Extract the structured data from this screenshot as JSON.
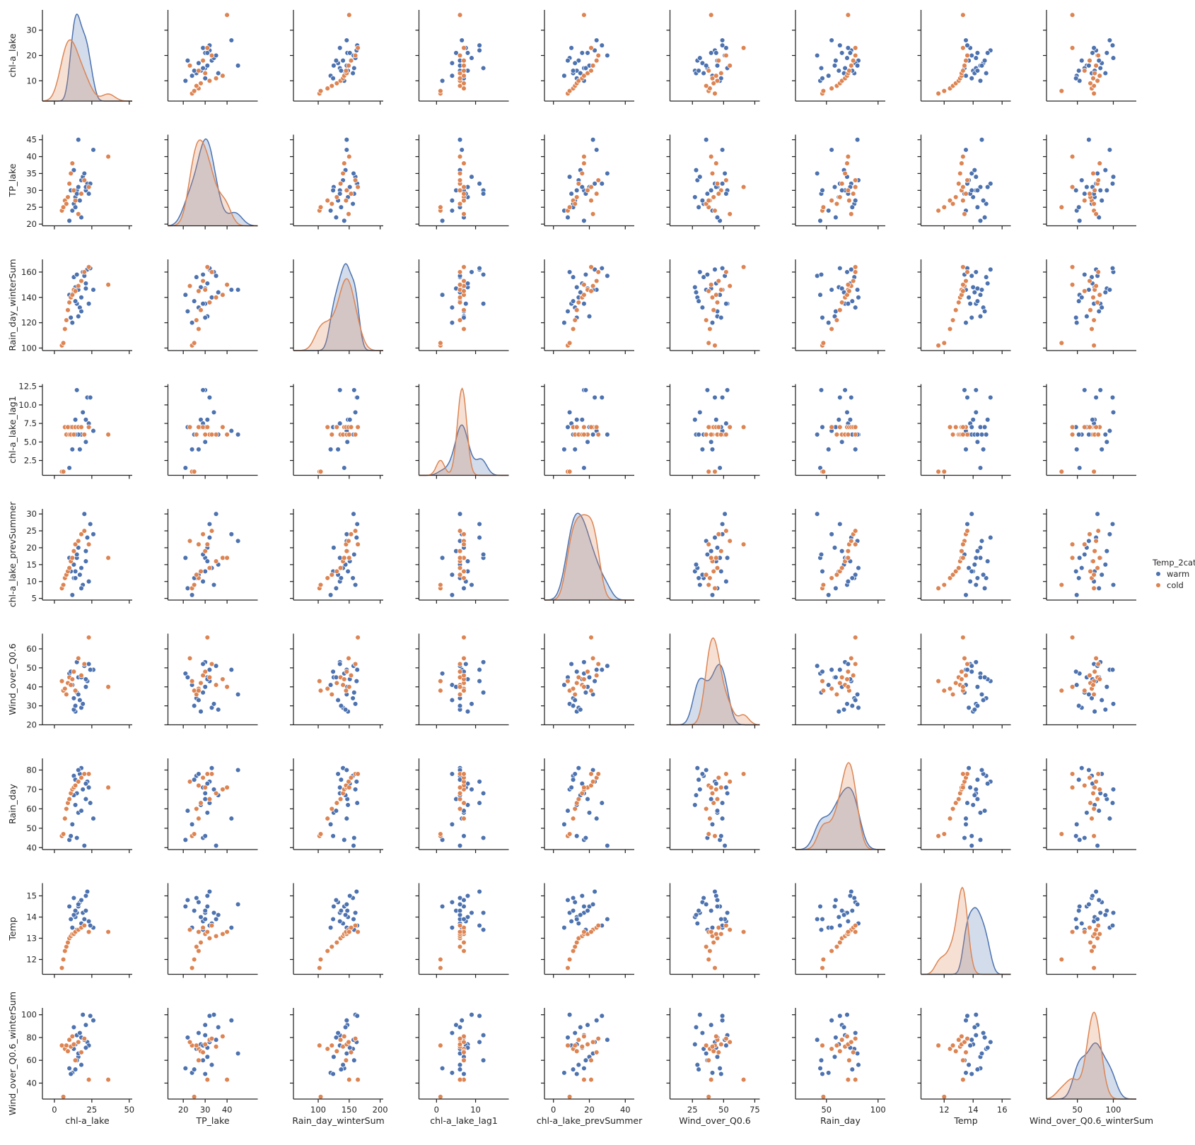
{
  "chart_data": {
    "type": "scatter",
    "kind": "pairplot",
    "hue": "Temp_2cat",
    "legend": {
      "title": "Temp_2cat",
      "placement": "right",
      "entries": [
        {
          "name": "warm",
          "color": "#4c72b0"
        },
        {
          "name": "cold",
          "color": "#dd8452"
        }
      ]
    },
    "variables": [
      {
        "name": "chl-a_lake",
        "range": [
          -8,
          52
        ],
        "ticks": [
          0,
          25,
          50
        ],
        "xtick_labels": [
          "0",
          "25",
          "50"
        ],
        "yrange": [
          2,
          38
        ],
        "yticks": [
          10,
          20,
          30
        ],
        "ytick_labels": [
          "10",
          "20",
          "30"
        ]
      },
      {
        "name": "TP_lake",
        "range": [
          13,
          54
        ],
        "ticks": [
          20,
          30,
          40
        ],
        "xtick_labels": [
          "20",
          "30",
          "40"
        ],
        "yrange": [
          19.5,
          46.5
        ],
        "yticks": [
          20,
          25,
          30,
          35,
          40,
          45
        ],
        "ytick_labels": [
          "20",
          "25",
          "30",
          "35",
          "40",
          "45"
        ]
      },
      {
        "name": "Rain_day_winterSum",
        "range": [
          60,
          205
        ],
        "ticks": [
          100,
          150,
          200
        ],
        "xtick_labels": [
          "100",
          "150",
          "200"
        ],
        "yrange": [
          98,
          170
        ],
        "yticks": [
          100,
          120,
          140,
          160
        ],
        "ytick_labels": [
          "100",
          "120",
          "140",
          "160"
        ]
      },
      {
        "name": "chl-a_lake_lag1",
        "range": [
          -4.5,
          18.5
        ],
        "ticks": [
          0,
          10
        ],
        "xtick_labels": [
          "0",
          "10"
        ],
        "yrange": [
          0.5,
          12.8
        ],
        "yticks": [
          2.5,
          5.0,
          7.5,
          10.0,
          12.5
        ],
        "ytick_labels": [
          "2.5",
          "5.0",
          "7.5",
          "10.0",
          "12.5"
        ]
      },
      {
        "name": "chl-a_lake_prevSummer",
        "range": [
          -5,
          45
        ],
        "ticks": [
          0,
          20,
          40
        ],
        "xtick_labels": [
          "0",
          "20",
          "40"
        ],
        "yrange": [
          4.5,
          31.5
        ],
        "yticks": [
          5,
          10,
          15,
          20,
          25,
          30
        ],
        "ytick_labels": [
          "5",
          "10",
          "15",
          "20",
          "25",
          "30"
        ]
      },
      {
        "name": "Wind_over_Q0.6",
        "range": [
          7,
          79
        ],
        "ticks": [
          25,
          50,
          75
        ],
        "xtick_labels": [
          "25",
          "50",
          "75"
        ],
        "yrange": [
          20,
          68
        ],
        "yticks": [
          20,
          30,
          40,
          50,
          60
        ],
        "ytick_labels": [
          "20",
          "30",
          "40",
          "50",
          "60"
        ]
      },
      {
        "name": "Rain_day",
        "range": [
          20,
          107
        ],
        "ticks": [
          50,
          100
        ],
        "xtick_labels": [
          "50",
          "100"
        ],
        "yrange": [
          39,
          86
        ],
        "yticks": [
          40,
          50,
          60,
          70,
          80
        ],
        "ytick_labels": [
          "40",
          "50",
          "60",
          "70",
          "80"
        ]
      },
      {
        "name": "Temp",
        "range": [
          10.4,
          16.6
        ],
        "ticks": [
          12,
          14,
          16
        ],
        "xtick_labels": [
          "12",
          "14",
          "16"
        ],
        "yrange": [
          11.3,
          15.6
        ],
        "yticks": [
          12,
          13,
          14,
          15
        ],
        "ytick_labels": [
          "12",
          "13",
          "14",
          "15"
        ]
      },
      {
        "name": "Wind_over_Q0.6_winterSum",
        "range": [
          7,
          132
        ],
        "ticks": [
          50,
          100
        ],
        "xtick_labels": [
          "50",
          "100"
        ],
        "yrange": [
          26,
          106
        ],
        "yticks": [
          40,
          60,
          80,
          100
        ],
        "ytick_labels": [
          "40",
          "60",
          "80",
          "100"
        ]
      }
    ],
    "points": [
      {
        "group": "warm",
        "values": [
          10,
          21,
          142,
          1.5,
          17,
          47,
          44,
          14.5,
          53
        ]
      },
      {
        "group": "warm",
        "values": [
          12,
          24,
          120,
          4,
          6,
          41,
          52,
          13.5,
          49
        ]
      },
      {
        "group": "warm",
        "values": [
          13,
          26,
          156,
          6,
          11,
          34,
          77,
          14.9,
          70
        ]
      },
      {
        "group": "warm",
        "values": [
          14,
          28,
          148,
          8,
          13,
          27,
          62,
          14.0,
          74
        ]
      },
      {
        "group": "warm",
        "values": [
          15,
          30,
          135,
          12,
          17,
          53,
          68,
          14.2,
          82
        ]
      },
      {
        "group": "warm",
        "values": [
          16,
          31,
          125,
          7,
          20,
          45,
          58,
          14.5,
          63
        ]
      },
      {
        "group": "warm",
        "values": [
          18,
          33,
          140,
          6,
          14,
          29,
          81,
          13.7,
          56
        ]
      },
      {
        "group": "warm",
        "values": [
          19,
          34,
          160,
          9,
          9,
          31,
          70,
          14.2,
          100
        ]
      },
      {
        "group": "warm",
        "values": [
          21,
          30,
          147,
          5,
          19,
          40,
          65,
          14.3,
          91
        ]
      },
      {
        "group": "warm",
        "values": [
          22,
          32,
          162,
          11,
          23,
          43,
          74,
          15.2,
          76
        ]
      },
      {
        "group": "warm",
        "values": [
          23,
          29,
          135,
          7.5,
          10,
          52,
          71,
          13.8,
          73
        ]
      },
      {
        "group": "warm",
        "values": [
          26,
          42,
          146,
          6.5,
          24,
          49,
          55,
          13.5,
          95
        ]
      },
      {
        "group": "warm",
        "values": [
          20,
          35,
          157,
          6,
          30,
          51,
          41,
          13.9,
          78
        ]
      },
      {
        "group": "warm",
        "values": [
          17,
          27,
          132,
          4,
          12,
          33,
          78,
          14.7,
          84
        ]
      },
      {
        "group": "warm",
        "values": [
          15,
          29,
          158,
          12,
          18,
          37,
          45,
          13.4,
          60
        ]
      },
      {
        "group": "warm",
        "values": [
          13,
          36,
          144,
          6,
          15,
          28,
          67,
          14.1,
          89
        ]
      },
      {
        "group": "warm",
        "values": [
          11,
          30,
          124,
          7,
          13,
          48,
          46,
          13.9,
          48
        ]
      },
      {
        "group": "warm",
        "values": [
          21,
          31,
          151,
          8,
          16,
          44,
          73,
          15.0,
          71
        ]
      },
      {
        "group": "warm",
        "values": [
          16,
          45,
          146,
          6,
          22,
          36,
          80,
          14.6,
          66
        ]
      },
      {
        "group": "warm",
        "values": [
          18,
          22,
          129,
          7,
          8,
          45,
          59,
          14.8,
          80
        ]
      },
      {
        "group": "warm",
        "values": [
          24,
          32,
          163,
          11,
          27,
          49,
          63,
          13.6,
          99
        ]
      },
      {
        "group": "warm",
        "values": [
          14,
          25,
          137,
          6,
          11,
          30,
          75,
          14.3,
          52
        ]
      },
      {
        "group": "cold",
        "values": [
          5,
          24,
          102,
          1,
          8,
          43,
          46,
          11.6,
          73
        ]
      },
      {
        "group": "cold",
        "values": [
          6,
          25,
          104,
          1,
          9,
          38,
          47,
          12.0,
          28
        ]
      },
      {
        "group": "cold",
        "values": [
          7,
          27,
          115,
          7,
          11,
          39,
          55,
          12.4,
          70
        ]
      },
      {
        "group": "cold",
        "values": [
          8,
          26,
          122,
          6,
          12,
          36,
          60,
          12.6,
          73
        ]
      },
      {
        "group": "cold",
        "values": [
          9,
          28,
          130,
          7,
          13,
          42,
          63,
          12.8,
          68
        ]
      },
      {
        "group": "cold",
        "values": [
          10,
          32,
          136,
          6,
          14,
          45,
          65,
          13.0,
          78
        ]
      },
      {
        "group": "cold",
        "values": [
          11,
          35,
          140,
          6,
          16,
          41,
          68,
          13.1,
          72
        ]
      },
      {
        "group": "cold",
        "values": [
          12,
          38,
          142,
          7,
          17,
          44,
          70,
          13.2,
          81
        ]
      },
      {
        "group": "cold",
        "values": [
          13,
          30,
          146,
          6,
          19,
          48,
          71,
          13.2,
          74
        ]
      },
      {
        "group": "cold",
        "values": [
          14,
          27,
          145,
          7,
          21,
          38,
          72,
          13.3,
          60
        ]
      },
      {
        "group": "cold",
        "values": [
          16,
          23,
          149,
          7,
          22,
          55,
          74,
          13.4,
          76
        ]
      },
      {
        "group": "cold",
        "values": [
          18,
          29,
          153,
          7,
          24,
          46,
          76,
          13.5,
          67
        ]
      },
      {
        "group": "cold",
        "values": [
          20,
          33,
          160,
          6,
          25,
          52,
          78,
          13.6,
          79
        ]
      },
      {
        "group": "cold",
        "values": [
          23,
          31,
          164,
          7,
          21,
          66,
          78,
          13.3,
          43
        ]
      },
      {
        "group": "cold",
        "values": [
          36,
          40,
          150,
          6,
          17,
          40,
          71,
          13.3,
          43
        ]
      }
    ]
  }
}
